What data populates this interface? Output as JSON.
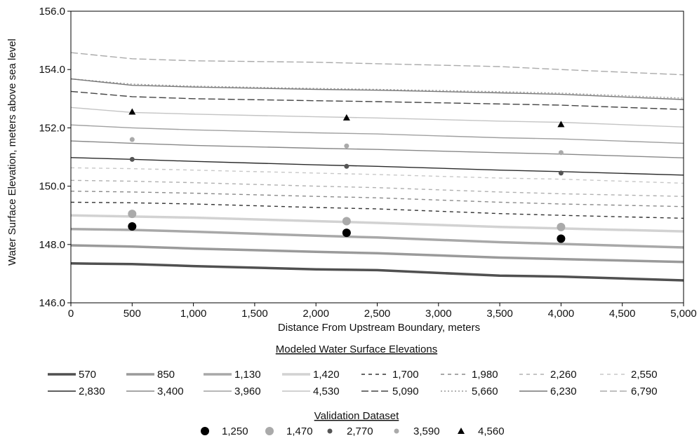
{
  "chart_data": {
    "type": "line",
    "xlabel": "Distance From Upstream Boundary, meters",
    "ylabel": "Water Surface Elevation, meters above sea level",
    "xlim": [
      0,
      5000
    ],
    "ylim": [
      146.0,
      156.0
    ],
    "x_ticks": [
      "0",
      "500",
      "1,000",
      "1,500",
      "2,000",
      "2,500",
      "3,000",
      "3,500",
      "4,000",
      "4,500",
      "5,000"
    ],
    "y_ticks": [
      "146.0",
      "148.0",
      "150.0",
      "152.0",
      "154.0",
      "156.0"
    ],
    "grid": false,
    "legend_modeled_title": "Modeled Water Surface Elevations",
    "legend_validation_title": "Validation Dataset",
    "modeled_series": [
      {
        "name": "570",
        "color": "#505050",
        "style": "solid",
        "x": [
          0,
          500,
          1000,
          2000,
          2500,
          3500,
          4000,
          5000
        ],
        "y": [
          147.35,
          147.33,
          147.26,
          147.15,
          147.12,
          146.93,
          146.9,
          146.77
        ]
      },
      {
        "name": "850",
        "color": "#9a9a9a",
        "style": "solid",
        "x": [
          0,
          500,
          1000,
          2000,
          2500,
          3500,
          4000,
          5000
        ],
        "y": [
          147.97,
          147.93,
          147.86,
          147.75,
          147.7,
          147.55,
          147.5,
          147.4
        ]
      },
      {
        "name": "1,130",
        "color": "#a8a8a8",
        "style": "solid",
        "x": [
          0,
          500,
          1000,
          2000,
          2500,
          3500,
          4000,
          5000
        ],
        "y": [
          148.53,
          148.5,
          148.44,
          148.3,
          148.24,
          148.08,
          148.02,
          147.9
        ]
      },
      {
        "name": "1,420",
        "color": "#d2d2d2",
        "style": "solid",
        "x": [
          0,
          500,
          1000,
          2000,
          2500,
          3500,
          4000,
          5000
        ],
        "y": [
          149.0,
          148.96,
          148.92,
          148.8,
          148.74,
          148.6,
          148.55,
          148.45
        ]
      },
      {
        "name": "1,700",
        "color": "#333333",
        "style": "dash",
        "x": [
          0,
          500,
          1000,
          2000,
          2500,
          3500,
          4000,
          5000
        ],
        "y": [
          149.45,
          149.43,
          149.39,
          149.27,
          149.22,
          149.06,
          149.0,
          148.9
        ]
      },
      {
        "name": "1,980",
        "color": "#8a8a8a",
        "style": "dash",
        "x": [
          0,
          500,
          1000,
          2000,
          2500,
          3500,
          4000,
          5000
        ],
        "y": [
          149.83,
          149.8,
          149.76,
          149.65,
          149.6,
          149.45,
          149.39,
          149.3
        ]
      },
      {
        "name": "2,260",
        "color": "#b0b0b0",
        "style": "dash",
        "x": [
          0,
          500,
          1000,
          2000,
          2500,
          3500,
          4000,
          5000
        ],
        "y": [
          150.2,
          150.17,
          150.12,
          150.0,
          149.95,
          149.8,
          149.74,
          149.65
        ]
      },
      {
        "name": "2,550",
        "color": "#c8c8c8",
        "style": "dash",
        "x": [
          0,
          500,
          1000,
          2000,
          2500,
          3500,
          4000,
          5000
        ],
        "y": [
          150.63,
          150.6,
          150.55,
          150.45,
          150.4,
          150.28,
          150.24,
          150.1
        ]
      },
      {
        "name": "2,830",
        "color": "#2a2a2a",
        "style": "solid",
        "x": [
          0,
          500,
          1000,
          2000,
          2500,
          3500,
          4000,
          5000
        ],
        "y": [
          150.98,
          150.92,
          150.85,
          150.73,
          150.68,
          150.55,
          150.5,
          150.38
        ]
      },
      {
        "name": "3,400",
        "color": "#888888",
        "style": "solid",
        "x": [
          0,
          500,
          1000,
          2000,
          2500,
          3500,
          4000,
          5000
        ],
        "y": [
          151.55,
          151.47,
          151.4,
          151.3,
          151.26,
          151.15,
          151.1,
          150.97
        ]
      },
      {
        "name": "3,960",
        "color": "#a0a0a0",
        "style": "solid",
        "x": [
          0,
          500,
          1000,
          2000,
          2500,
          3500,
          4000,
          5000
        ],
        "y": [
          152.1,
          152.0,
          151.93,
          151.83,
          151.79,
          151.66,
          151.62,
          151.47
        ]
      },
      {
        "name": "4,530",
        "color": "#c4c4c4",
        "style": "solid",
        "x": [
          0,
          500,
          1000,
          2000,
          2500,
          3500,
          4000,
          5000
        ],
        "y": [
          152.7,
          152.53,
          152.47,
          152.38,
          152.34,
          152.23,
          152.19,
          152.03
        ]
      },
      {
        "name": "5,090",
        "color": "#444444",
        "style": "longdash",
        "x": [
          0,
          500,
          1000,
          2000,
          2500,
          3500,
          4000,
          5000
        ],
        "y": [
          153.25,
          153.07,
          153.0,
          152.93,
          152.9,
          152.82,
          152.78,
          152.63
        ]
      },
      {
        "name": "5,660",
        "color": "#999999",
        "style": "dot",
        "x": [
          0,
          500,
          1000,
          2000,
          2500,
          3500,
          4000,
          5000
        ],
        "y": [
          153.68,
          153.5,
          153.43,
          153.35,
          153.32,
          153.24,
          153.19,
          153.02
        ]
      },
      {
        "name": "6,230",
        "color": "#777777",
        "style": "solid",
        "x": [
          0,
          500,
          1000,
          2000,
          2500,
          3500,
          4000,
          5000
        ],
        "y": [
          153.68,
          153.46,
          153.4,
          153.32,
          153.29,
          153.2,
          153.15,
          152.97
        ]
      },
      {
        "name": "6,790",
        "color": "#aaaaaa",
        "style": "longdash",
        "x": [
          0,
          500,
          1000,
          2000,
          2500,
          3500,
          4000,
          5000
        ],
        "y": [
          154.58,
          154.37,
          154.3,
          154.25,
          154.2,
          154.1,
          154.0,
          153.82
        ]
      }
    ],
    "validation_series": [
      {
        "name": "1,250",
        "color": "#000000",
        "marker": "circle-large",
        "x": [
          500,
          2250,
          4000
        ],
        "y": [
          148.62,
          148.4,
          148.2
        ]
      },
      {
        "name": "1,470",
        "color": "#aaaaaa",
        "marker": "circle-large",
        "x": [
          500,
          2250,
          4000
        ],
        "y": [
          149.05,
          148.8,
          148.6
        ]
      },
      {
        "name": "2,770",
        "color": "#555555",
        "marker": "circle-small",
        "x": [
          500,
          2250,
          4000
        ],
        "y": [
          150.92,
          150.68,
          150.45
        ]
      },
      {
        "name": "3,590",
        "color": "#aaaaaa",
        "marker": "circle-small",
        "x": [
          500,
          2250,
          4000
        ],
        "y": [
          151.6,
          151.38,
          151.15
        ]
      },
      {
        "name": "4,560",
        "color": "#000000",
        "marker": "triangle",
        "x": [
          500,
          2250,
          4000
        ],
        "y": [
          152.55,
          152.35,
          152.12
        ]
      }
    ]
  }
}
